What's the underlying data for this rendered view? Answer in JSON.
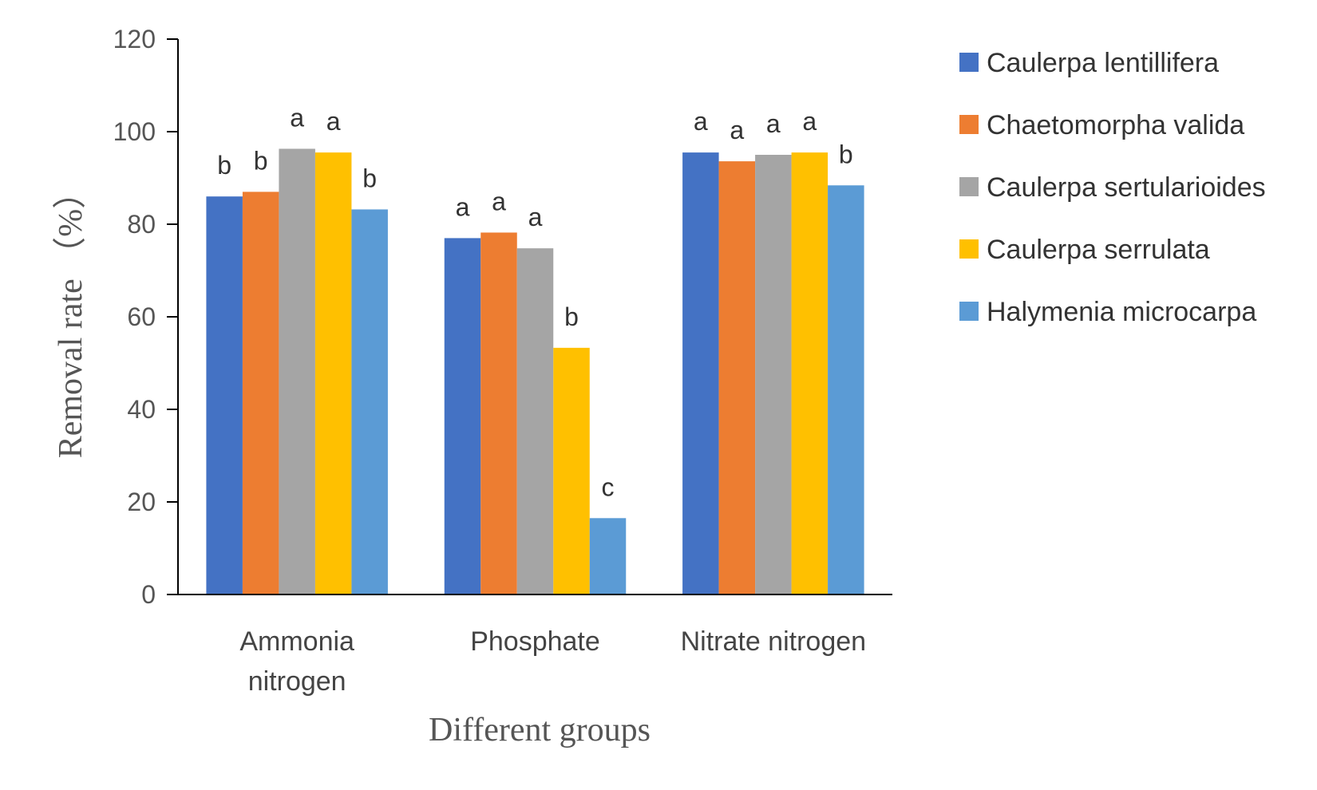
{
  "chart_data": {
    "type": "bar",
    "title": "",
    "xlabel": "Different groups",
    "ylabel": "Removal rate （%）",
    "ylim": [
      0,
      120
    ],
    "yticks": [
      0,
      20,
      40,
      60,
      80,
      100,
      120
    ],
    "grid": false,
    "legend_position": "right",
    "categories": [
      [
        "Ammonia",
        "nitrogen"
      ],
      [
        "Phosphate"
      ],
      [
        "Nitrate nitrogen"
      ]
    ],
    "series": [
      {
        "name": "Caulerpa lentillifera",
        "color": "#4472C4",
        "values": [
          86,
          77,
          95.5
        ],
        "labels": [
          "b",
          "a",
          "a"
        ]
      },
      {
        "name": "Chaetomorpha valida",
        "color": "#ED7D31",
        "values": [
          87,
          78.2,
          93.6
        ],
        "labels": [
          "b",
          "a",
          "a"
        ]
      },
      {
        "name": "Caulerpa sertularioides",
        "color": "#A5A5A5",
        "values": [
          96.3,
          74.8,
          95
        ],
        "labels": [
          "a",
          "a",
          "a"
        ]
      },
      {
        "name": "Caulerpa serrulata",
        "color": "#FFC000",
        "values": [
          95.5,
          53.3,
          95.5
        ],
        "labels": [
          "a",
          "b",
          "a"
        ]
      },
      {
        "name": "Halymenia microcarpa",
        "color": "#5B9BD5",
        "values": [
          83.2,
          16.5,
          88.4
        ],
        "labels": [
          "b",
          "c",
          "b"
        ]
      }
    ]
  }
}
